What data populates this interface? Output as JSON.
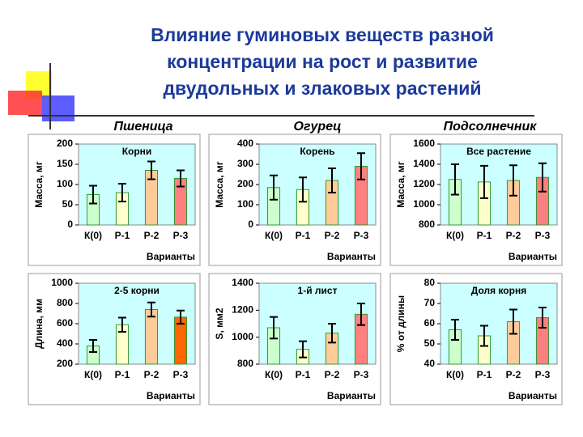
{
  "title": [
    "Влияние гуминовых веществ разной",
    "концентрации на рост и развитие",
    "двудольных и злаковых растений"
  ],
  "column_headers": [
    "Пшеница",
    "Огурец",
    "Подсолнечник"
  ],
  "chart_data": [
    {
      "type": "bar",
      "annotation": "Корни",
      "ylabel": "Масса, мг",
      "xlabel": "Варианты",
      "categories": [
        "К(0)",
        "Р-1",
        "Р-2",
        "Р-3"
      ],
      "values": [
        75,
        80,
        135,
        115
      ],
      "errors": [
        22,
        22,
        22,
        20
      ],
      "colors": [
        "#ccffcc",
        "#ffffcc",
        "#ffcc99",
        "#ff8080"
      ],
      "ylim": [
        0,
        200
      ],
      "yticks": [
        0,
        50,
        100,
        150,
        200
      ]
    },
    {
      "type": "bar",
      "annotation": "Корень",
      "ylabel": "Масса, мг",
      "xlabel": "Варианты",
      "categories": [
        "К(0)",
        "Р-1",
        "Р-2",
        "Р-3"
      ],
      "values": [
        185,
        175,
        220,
        290
      ],
      "errors": [
        60,
        60,
        60,
        65
      ],
      "colors": [
        "#ccffcc",
        "#ffffcc",
        "#ffcc99",
        "#ff8080"
      ],
      "ylim": [
        0,
        400
      ],
      "yticks": [
        0,
        100,
        200,
        300,
        400
      ]
    },
    {
      "type": "bar",
      "annotation": "Все растение",
      "ylabel": "Масса, мг",
      "xlabel": "Варианты",
      "categories": [
        "К(0)",
        "Р-1",
        "Р-2",
        "Р-3"
      ],
      "values": [
        1250,
        1225,
        1240,
        1270
      ],
      "errors": [
        150,
        160,
        150,
        140
      ],
      "colors": [
        "#ccffcc",
        "#ffffcc",
        "#ffcc99",
        "#ff8080"
      ],
      "ylim": [
        800,
        1600
      ],
      "yticks": [
        800,
        1000,
        1200,
        1400,
        1600
      ]
    },
    {
      "type": "bar",
      "annotation": "2-5 корни",
      "ylabel": "Длина, мм",
      "xlabel": "Варианты",
      "categories": [
        "К(0)",
        "Р-1",
        "Р-2",
        "Р-3"
      ],
      "values": [
        380,
        590,
        740,
        665
      ],
      "errors": [
        60,
        70,
        70,
        65
      ],
      "colors": [
        "#ccffcc",
        "#ffffcc",
        "#ffcc99",
        "#ff6600"
      ],
      "ylim": [
        200,
        1000
      ],
      "yticks": [
        200,
        400,
        600,
        800,
        1000
      ]
    },
    {
      "type": "bar",
      "annotation": "1-й лист",
      "ylabel": "S, мм2",
      "xlabel": "Варианты",
      "categories": [
        "К(0)",
        "Р-1",
        "Р-2",
        "Р-3"
      ],
      "values": [
        1070,
        910,
        1030,
        1170
      ],
      "errors": [
        80,
        60,
        70,
        80
      ],
      "colors": [
        "#ccffcc",
        "#ffffcc",
        "#ffcc99",
        "#ff8080"
      ],
      "ylim": [
        800,
        1400
      ],
      "yticks": [
        800,
        1000,
        1200,
        1400
      ]
    },
    {
      "type": "bar",
      "annotation": "Доля корня",
      "ylabel": "% от длины",
      "xlabel": "Варианты",
      "categories": [
        "К(0)",
        "Р-1",
        "Р-2",
        "Р-3"
      ],
      "values": [
        57,
        54,
        61,
        63
      ],
      "errors": [
        5,
        5,
        6,
        5
      ],
      "colors": [
        "#ccffcc",
        "#ffffcc",
        "#ffcc99",
        "#ff8080"
      ],
      "ylim": [
        40,
        80
      ],
      "yticks": [
        40,
        50,
        60,
        70,
        80
      ]
    }
  ]
}
